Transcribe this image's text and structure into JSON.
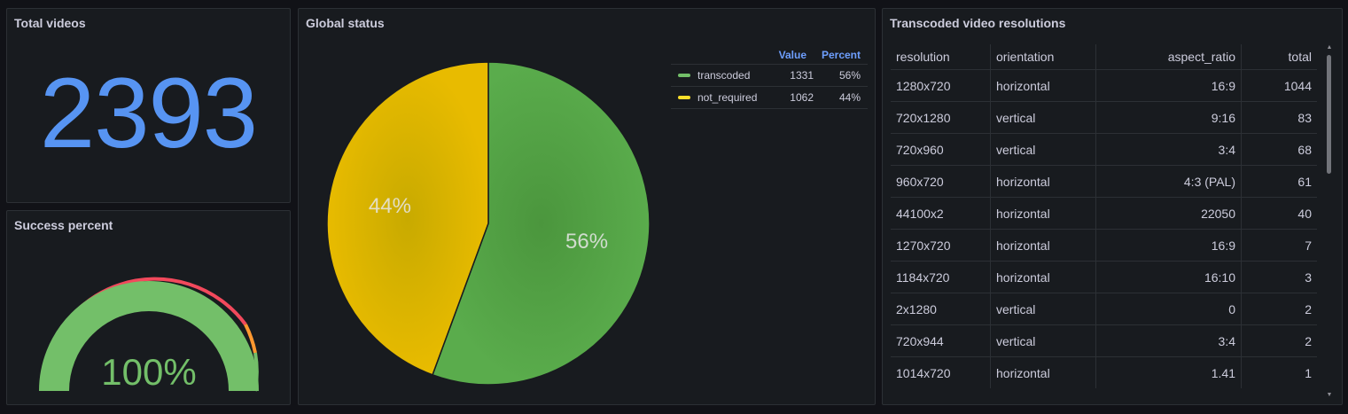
{
  "panels": {
    "total_videos": {
      "title": "Total videos",
      "value": "2393",
      "color": "#5794f2"
    },
    "success_percent": {
      "title": "Success percent",
      "value_label": "100%",
      "value": 100,
      "color": "#73bf69"
    },
    "global_status": {
      "title": "Global status",
      "legend": {
        "headers": {
          "value": "Value",
          "percent": "Percent"
        },
        "items": [
          {
            "name": "transcoded",
            "value": "1331",
            "percent": "56%",
            "color": "#56a64b"
          },
          {
            "name": "not_required",
            "value": "1062",
            "percent": "44%",
            "color": "#e0b400"
          }
        ]
      }
    },
    "resolutions": {
      "title": "Transcoded video resolutions",
      "headers": [
        "resolution",
        "orientation",
        "aspect_ratio",
        "total"
      ],
      "rows": [
        [
          "1280x720",
          "horizontal",
          "16:9",
          "1044"
        ],
        [
          "720x1280",
          "vertical",
          "9:16",
          "83"
        ],
        [
          "720x960",
          "vertical",
          "3:4",
          "68"
        ],
        [
          "960x720",
          "horizontal",
          "4:3 (PAL)",
          "61"
        ],
        [
          "44100x2",
          "horizontal",
          "22050",
          "40"
        ],
        [
          "1270x720",
          "horizontal",
          "16:9",
          "7"
        ],
        [
          "1184x720",
          "horizontal",
          "16:10",
          "3"
        ],
        [
          "2x1280",
          "vertical",
          "0",
          "2"
        ],
        [
          "720x944",
          "vertical",
          "3:4",
          "2"
        ],
        [
          "1014x720",
          "horizontal",
          "1.41",
          "1"
        ]
      ]
    }
  },
  "chart_data": [
    {
      "type": "pie",
      "categories": [
        "transcoded",
        "not_required"
      ],
      "values": [
        1331,
        1062
      ],
      "labels": [
        "56%",
        "44%"
      ],
      "colors": [
        "#56a64b",
        "#e0b400"
      ],
      "legend": "right"
    }
  ]
}
